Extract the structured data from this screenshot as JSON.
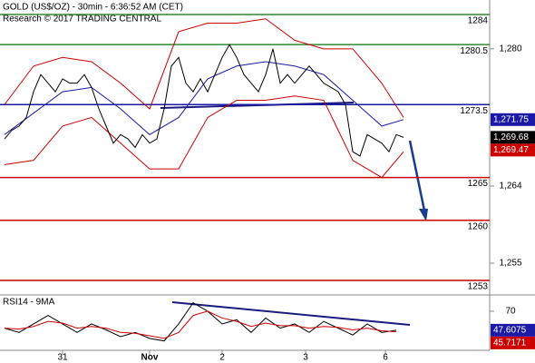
{
  "chart_data": {
    "type": "line",
    "title": "GOLD (US$/OZ) - 30min - 6:36:52 AM (CET)",
    "subtitle": "Research © 2017 TRADING CENTRAL",
    "xlim": [
      -1.25,
      133.75
    ],
    "xticks": [
      {
        "value": 16,
        "label": "31"
      },
      {
        "value": 40,
        "label": "Nov"
      },
      {
        "value": 60,
        "label": "2"
      },
      {
        "value": 83,
        "label": "3"
      },
      {
        "value": 105,
        "label": "6"
      }
    ],
    "panels": [
      {
        "ylim": [
          1251.3,
          1285.7
        ],
        "yticks": [
          {
            "value": 1255,
            "label": "1,255"
          },
          {
            "value": 1264,
            "label": "1,264"
          },
          {
            "value": 1280,
            "label": "1,280"
          }
        ],
        "levels": [
          {
            "value": 1284,
            "color": "#2e8b2e"
          },
          {
            "value": 1280.5,
            "color": "#2e8b2e"
          },
          {
            "value": 1273.5,
            "color": "#1a1aa6"
          },
          {
            "value": 1265,
            "color": "#cc0000"
          },
          {
            "value": 1260,
            "color": "#cc0000"
          },
          {
            "value": 1253,
            "color": "#cc0000"
          }
        ],
        "series": [
          {
            "color": "#cc0000",
            "x": [
              0,
              8,
              16,
              24,
              32,
              40,
              48,
              56,
              64,
              72,
              80,
              88,
              96,
              104,
              110
            ],
            "values": [
              1273.5,
              1278,
              1279,
              1278.5,
              1276,
              1273,
              1282,
              1283,
              1283,
              1283.5,
              1281,
              1280,
              1280,
              1276,
              1272
            ]
          },
          {
            "color": "#cc0000",
            "x": [
              0,
              8,
              16,
              24,
              32,
              40,
              48,
              56,
              64,
              72,
              80,
              88,
              96,
              104,
              110
            ],
            "values": [
              1266.5,
              1267,
              1271,
              1272,
              1269,
              1266,
              1266,
              1272,
              1274,
              1274,
              1274.5,
              1274,
              1267,
              1265,
              1268
            ]
          },
          {
            "color": "#1a1aa6",
            "x": [
              0,
              8,
              16,
              24,
              32,
              40,
              48,
              56,
              64,
              72,
              80,
              88,
              96,
              104,
              110
            ],
            "values": [
              1270,
              1272.5,
              1275,
              1275.5,
              1273,
              1270,
              1272,
              1276.5,
              1278,
              1278.5,
              1278,
              1277,
              1274,
              1271,
              1271.75
            ]
          },
          {
            "color": "#000000",
            "x": [
              0,
              2,
              4,
              6,
              8,
              10,
              12,
              14,
              16,
              18,
              20,
              22,
              24,
              26,
              28,
              30,
              32,
              34,
              36,
              38,
              40,
              42,
              44,
              46,
              48,
              50,
              52,
              54,
              56,
              58,
              60,
              62,
              64,
              66,
              68,
              70,
              72,
              74,
              76,
              78,
              80,
              82,
              84,
              86,
              88,
              90,
              92,
              94,
              96,
              98,
              100,
              102,
              104,
              106,
              108,
              110
            ],
            "values": [
              1269.5,
              1270.5,
              1271,
              1272,
              1275,
              1277,
              1276,
              1275,
              1276.5,
              1276,
              1276,
              1277,
              1275.5,
              1273,
              1271,
              1269,
              1270,
              1269.5,
              1268.5,
              1270,
              1269,
              1269.5,
              1273,
              1278,
              1279,
              1276,
              1275,
              1276.5,
              1275,
              1277,
              1279,
              1280.5,
              1279,
              1277,
              1276,
              1275,
              1277,
              1280,
              1276,
              1277,
              1276,
              1277,
              1278,
              1277,
              1276,
              1275.5,
              1275,
              1273.5,
              1268,
              1267.5,
              1270,
              1269.5,
              1269,
              1268,
              1270,
              1269.68
            ]
          }
        ],
        "tags": [
          {
            "value": 1271.75,
            "label": "1,271.75",
            "color": "#1a1aa6"
          },
          {
            "value": 1269.68,
            "label": "1,269.68",
            "color": "#000000"
          },
          {
            "value": 1269.47,
            "label": "1,269.47",
            "color": "#cc0000"
          }
        ]
      },
      {
        "label": "RSI14 - 9MA",
        "ylim": [
          25,
          86
        ],
        "yticks": [
          70
        ],
        "series": [
          {
            "color": "#000000",
            "x": [
              0,
              4,
              8,
              12,
              16,
              20,
              24,
              28,
              32,
              36,
              40,
              44,
              48,
              52,
              56,
              60,
              64,
              68,
              72,
              76,
              80,
              84,
              88,
              92,
              96,
              100,
              104,
              108
            ],
            "values": [
              50,
              45,
              55,
              65,
              55,
              45,
              55,
              48,
              40,
              45,
              38,
              35,
              55,
              80,
              70,
              55,
              60,
              45,
              62,
              50,
              55,
              45,
              58,
              50,
              42,
              55,
              45,
              47.6075
            ]
          },
          {
            "color": "#cc0000",
            "x": [
              0,
              4,
              8,
              12,
              16,
              20,
              24,
              28,
              32,
              36,
              40,
              44,
              48,
              52,
              56,
              60,
              64,
              68,
              72,
              76,
              80,
              84,
              88,
              92,
              96,
              100,
              104,
              108
            ],
            "values": [
              50,
              49,
              52,
              58,
              56,
              50,
              52,
              50,
              45,
              44,
              41,
              38,
              45,
              65,
              70,
              62,
              58,
              52,
              56,
              53,
              53,
              50,
              52,
              51,
              48,
              50,
              47,
              45.7171
            ]
          }
        ],
        "tags": [
          {
            "value": 47.6075,
            "label": "47.6075",
            "color": "#1a1aa6"
          },
          {
            "value": 45.7171,
            "label": "45.7171",
            "color": "#cc0000"
          }
        ]
      }
    ]
  }
}
